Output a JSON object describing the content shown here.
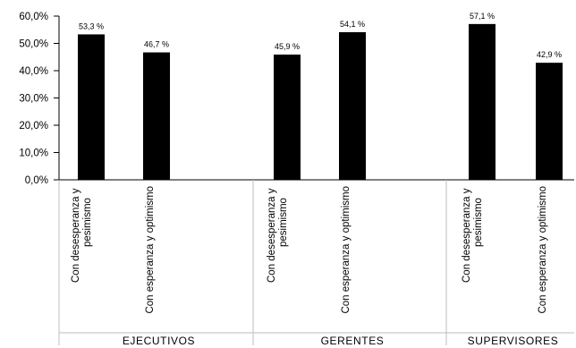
{
  "chart_data": {
    "type": "bar",
    "title": "",
    "xlabel": "",
    "ylabel": "",
    "ylim": [
      0,
      60
    ],
    "y_ticks": [
      0,
      10,
      20,
      30,
      40,
      50,
      60
    ],
    "y_tick_labels": [
      "0,0%",
      "10,0%",
      "20,0%",
      "30,0%",
      "40,0%",
      "50,0%",
      "60,0%"
    ],
    "grid": false,
    "legend": "none",
    "bar_color": "#000000",
    "groups": [
      {
        "label": "EJECUTIVOS",
        "bars": [
          {
            "category": "Con desesperanza y pesimismo",
            "value": 53.3,
            "value_label": "53,3 %"
          },
          {
            "category": "Con esperanza y optimismo",
            "value": 46.7,
            "value_label": "46,7 %"
          }
        ]
      },
      {
        "label": "GERENTES",
        "bars": [
          {
            "category": "Con desesperanza y pesimismo",
            "value": 45.9,
            "value_label": "45,9 %"
          },
          {
            "category": "Con esperanza y optimismo",
            "value": 54.1,
            "value_label": "54,1 %"
          }
        ]
      },
      {
        "label": "SUPERVISORES",
        "bars": [
          {
            "category": "Con desesperanza y pesimismo",
            "value": 57.1,
            "value_label": "57,1 %"
          },
          {
            "category": "Con esperanza y optimismo",
            "value": 42.9,
            "value_label": "42,9 %"
          }
        ]
      }
    ]
  }
}
